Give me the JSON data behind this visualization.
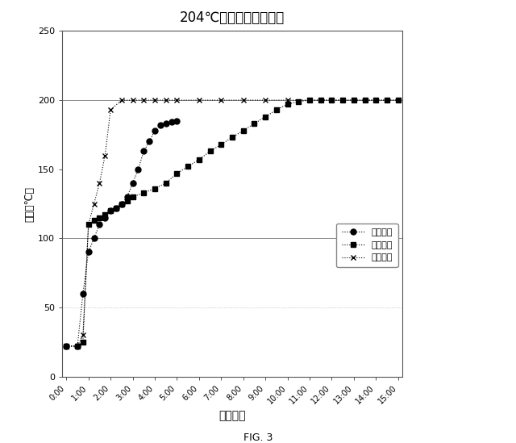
{
  "title": "204℃成型での硬化温度",
  "xlabel": "成型時間",
  "ylabel": "温度（℃）",
  "fig_caption": "FIG. 3",
  "ylim": [
    0,
    250
  ],
  "yticks": [
    0,
    50,
    100,
    150,
    200,
    250
  ],
  "xtick_labels": [
    "0:00",
    "1:00",
    "2:00",
    "3:00",
    "4:00",
    "5:00",
    "6:00",
    "7:00",
    "8:00",
    "9:00",
    "10:00",
    "11:00",
    "12:00",
    "13:00",
    "14:00",
    "15:00"
  ],
  "series": [
    {
      "name": "結合劑１",
      "color": "#000000",
      "linestyle": "dotted",
      "marker": "o",
      "markersize": 5,
      "x": [
        0,
        0.5,
        0.75,
        1.0,
        1.25,
        1.5,
        1.75,
        2.0,
        2.25,
        2.5,
        2.75,
        3.0,
        3.25,
        3.5,
        3.75,
        4.0,
        4.25,
        4.5,
        4.75,
        5.0
      ],
      "y": [
        22,
        22,
        60,
        90,
        100,
        110,
        115,
        120,
        122,
        125,
        130,
        140,
        150,
        163,
        170,
        178,
        182,
        183,
        184,
        185
      ]
    },
    {
      "name": "結合劑２",
      "color": "#000000",
      "linestyle": "dotted",
      "marker": "s",
      "markersize": 5,
      "x": [
        0,
        0.5,
        0.75,
        1.0,
        1.25,
        1.5,
        1.75,
        2.0,
        2.25,
        2.5,
        2.75,
        3.0,
        3.5,
        4.0,
        4.5,
        5.0,
        5.5,
        6.0,
        6.5,
        7.0,
        7.5,
        8.0,
        8.5,
        9.0,
        9.5,
        10.0,
        10.5,
        11.0,
        11.5,
        12.0,
        12.5,
        13.0,
        13.5,
        14.0,
        14.5,
        15.0
      ],
      "y": [
        22,
        22,
        25,
        110,
        113,
        115,
        117,
        120,
        122,
        125,
        127,
        130,
        133,
        136,
        140,
        147,
        152,
        157,
        163,
        168,
        173,
        178,
        183,
        188,
        193,
        197,
        199,
        200,
        200,
        200,
        200,
        200,
        200,
        200,
        200,
        200
      ]
    },
    {
      "name": "結合劑４",
      "color": "#000000",
      "linestyle": "dotted",
      "marker": "x",
      "markersize": 4,
      "x": [
        0,
        0.5,
        0.75,
        1.0,
        1.25,
        1.5,
        1.75,
        2.0,
        2.5,
        3.0,
        3.5,
        4.0,
        4.5,
        5.0,
        6.0,
        7.0,
        8.0,
        9.0,
        10.0,
        11.0,
        12.0,
        13.0,
        14.0,
        15.0
      ],
      "y": [
        22,
        22,
        30,
        110,
        125,
        140,
        160,
        193,
        200,
        200,
        200,
        200,
        200,
        200,
        200,
        200,
        200,
        200,
        200,
        200,
        200,
        200,
        200,
        200
      ]
    }
  ],
  "background_color": "#ffffff",
  "hgrid_solid": [
    100,
    200
  ],
  "hgrid_dotted": [
    50,
    250
  ]
}
